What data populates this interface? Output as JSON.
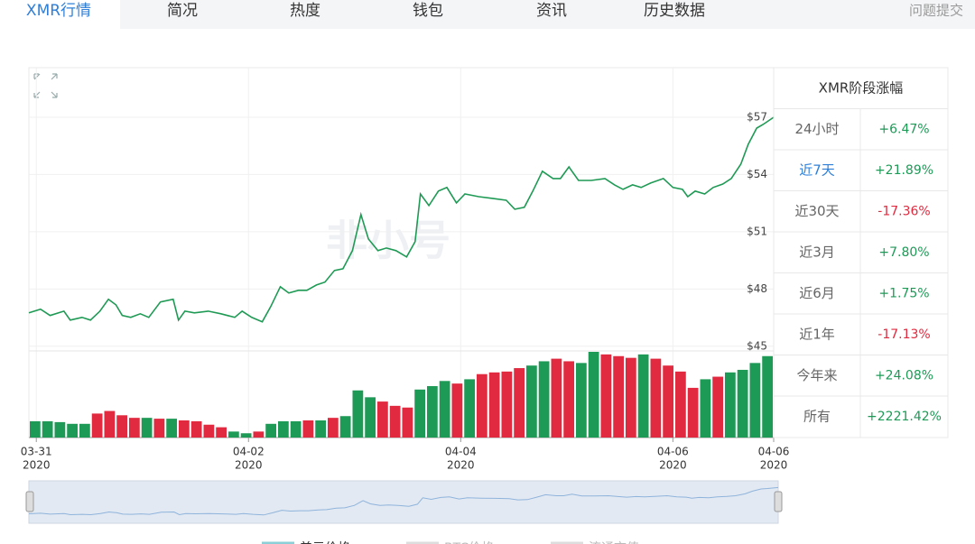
{
  "tabs": {
    "items": [
      "XMR行情",
      "简况",
      "热度",
      "钱包",
      "资讯",
      "历史数据"
    ],
    "active": 0,
    "right_link": "问题提交"
  },
  "chart_data": {
    "type": "line",
    "watermark": "非小号",
    "x": [
      -0.07,
      0.04,
      0.13,
      0.26,
      0.32,
      0.43,
      0.51,
      0.6,
      0.68,
      0.75,
      0.81,
      0.89,
      0.98,
      1.06,
      1.17,
      1.29,
      1.34,
      1.4,
      1.49,
      1.62,
      1.74,
      1.87,
      1.94,
      2.03,
      2.13,
      2.21,
      2.3,
      2.38,
      2.47,
      2.55,
      2.64,
      2.72,
      2.81,
      2.89,
      2.98,
      3.06,
      3.13,
      3.22,
      3.3,
      3.39,
      3.49,
      3.57,
      3.62,
      3.7,
      3.79,
      3.87,
      3.96,
      4.04,
      4.17,
      4.3,
      4.43,
      4.51,
      4.6,
      4.68,
      4.77,
      4.87,
      4.94,
      5.02,
      5.11,
      5.23,
      5.36,
      5.45,
      5.53,
      5.62,
      5.7,
      5.79,
      5.91,
      6.0,
      6.09,
      6.14,
      6.21,
      6.3,
      6.38,
      6.47,
      6.55,
      6.64,
      6.71,
      6.79,
      6.85,
      6.95
    ],
    "series": [
      {
        "name": "美元价格",
        "color": "#1f9a55",
        "values": [
          46.75,
          46.94,
          46.61,
          46.84,
          46.37,
          46.51,
          46.37,
          46.84,
          47.46,
          47.17,
          46.61,
          46.51,
          46.7,
          46.51,
          47.32,
          47.46,
          46.37,
          46.84,
          46.75,
          46.84,
          46.7,
          46.51,
          46.84,
          46.51,
          46.28,
          47.08,
          48.12,
          47.79,
          47.93,
          47.93,
          48.21,
          48.36,
          48.97,
          49.06,
          50.01,
          51.9,
          50.62,
          50.01,
          50.15,
          50.01,
          49.68,
          50.48,
          52.98,
          52.37,
          53.13,
          53.32,
          52.51,
          52.98,
          52.84,
          52.75,
          52.65,
          52.18,
          52.28,
          53.13,
          54.17,
          53.79,
          53.79,
          54.4,
          53.69,
          53.69,
          53.79,
          53.46,
          53.22,
          53.46,
          53.32,
          53.55,
          53.79,
          53.32,
          53.22,
          52.84,
          53.13,
          52.98,
          53.32,
          53.5,
          53.79,
          54.54,
          55.58,
          56.43,
          56.62,
          57.0
        ]
      },
      {
        "name": "BTC价格",
        "color": "#c8c8c8",
        "hidden": true
      },
      {
        "name": "流通市值",
        "color": "#c8c8c8",
        "hidden": true
      }
    ],
    "xlim": [
      -0.07,
      6.95
    ],
    "xticks": [
      {
        "value": 0,
        "label": "03-31",
        "sublabel": "2020"
      },
      {
        "value": 2,
        "label": "04-02",
        "sublabel": "2020"
      },
      {
        "value": 4,
        "label": "04-04",
        "sublabel": "2020"
      },
      {
        "value": 6,
        "label": "04-06",
        "sublabel": "2020"
      },
      {
        "value": 6.95,
        "label": "04-06",
        "sublabel": "2020"
      }
    ],
    "ylim": [
      44.8,
      59.6
    ],
    "yticks": [
      {
        "value": 45,
        "label": "$45"
      },
      {
        "value": 48,
        "label": "$48"
      },
      {
        "value": 51,
        "label": "$51"
      },
      {
        "value": 54,
        "label": "$54"
      },
      {
        "value": 57,
        "label": "$57"
      }
    ],
    "grid": true,
    "volume": {
      "ylim": [
        0,
        100
      ],
      "values": [
        19,
        19,
        18,
        16,
        16,
        28,
        31,
        26,
        23,
        23,
        22,
        22,
        20,
        19,
        15,
        12,
        7,
        5,
        7,
        16,
        19,
        19,
        20,
        20,
        23,
        25,
        55,
        47,
        42,
        37,
        35,
        56,
        60,
        66,
        63,
        68,
        74,
        76,
        77,
        81,
        84,
        89,
        92,
        89,
        87,
        100,
        97,
        95,
        93,
        97,
        92,
        84,
        77,
        58,
        68,
        71,
        76,
        79,
        87,
        95
      ],
      "colors": [
        "#1e9a57",
        "#1e9a57",
        "#1e9a57",
        "#1e9a57",
        "#1e9a57",
        "#e12a3f",
        "#e12a3f",
        "#e12a3f",
        "#e12a3f",
        "#1e9a57",
        "#e12a3f",
        "#1e9a57",
        "#e12a3f",
        "#e12a3f",
        "#e12a3f",
        "#e12a3f",
        "#1e9a57",
        "#1e9a57",
        "#e12a3f",
        "#1e9a57",
        "#1e9a57",
        "#1e9a57",
        "#e12a3f",
        "#1e9a57",
        "#e12a3f",
        "#1e9a57",
        "#1e9a57",
        "#1e9a57",
        "#e12a3f",
        "#e12a3f",
        "#e12a3f",
        "#1e9a57",
        "#1e9a57",
        "#1e9a57",
        "#e12a3f",
        "#1e9a57",
        "#e12a3f",
        "#e12a3f",
        "#e12a3f",
        "#e12a3f",
        "#1e9a57",
        "#1e9a57",
        "#e12a3f",
        "#e12a3f",
        "#1e9a57",
        "#1e9a57",
        "#e12a3f",
        "#e12a3f",
        "#e12a3f",
        "#1e9a57",
        "#e12a3f",
        "#e12a3f",
        "#e12a3f",
        "#e12a3f",
        "#1e9a57",
        "#e12a3f",
        "#1e9a57",
        "#1e9a57",
        "#1e9a57",
        "#1e9a57"
      ]
    }
  },
  "period_table": {
    "title": "XMR阶段涨幅",
    "active_row": 1,
    "rows": [
      [
        "24小时",
        "+6.47%"
      ],
      [
        "近7天",
        "+21.89%"
      ],
      [
        "近30天",
        "-17.36%"
      ],
      [
        "近3月",
        "+7.80%"
      ],
      [
        "近6月",
        "+1.75%"
      ],
      [
        "近1年",
        "-17.13%"
      ],
      [
        "今年来",
        "+24.08%"
      ],
      [
        "所有",
        "+2221.42%"
      ]
    ]
  }
}
